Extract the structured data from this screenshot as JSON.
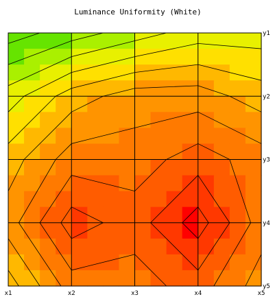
{
  "chart_data": {
    "type": "heatmap",
    "subtype": "filled-contour",
    "title": "Luminance Uniformity (White)",
    "x_tick_labels": [
      "x1",
      "x2",
      "x3",
      "x4",
      "x5"
    ],
    "y_tick_labels": [
      "y1",
      "y2",
      "y3",
      "y4",
      "y5"
    ],
    "y_axis_side": "right",
    "grid": true,
    "colormap": [
      "#22cc22",
      "#66e400",
      "#aaf000",
      "#e8f000",
      "#ffe000",
      "#ffb800",
      "#ff9400",
      "#ff7a00",
      "#ff5c00",
      "#ff3800",
      "#ff0000"
    ],
    "z_levels": [
      0.5,
      1.5,
      2.5,
      3.5,
      4.5,
      5.5,
      6.5,
      7.5,
      8.5,
      9.5
    ],
    "values": [
      [
        0,
        1,
        2,
        3,
        3
      ],
      [
        3,
        5,
        6,
        6,
        5
      ],
      [
        5,
        7,
        7,
        8,
        7
      ],
      [
        6,
        9,
        8,
        10,
        7
      ],
      [
        4,
        7,
        7,
        8,
        6
      ]
    ]
  }
}
